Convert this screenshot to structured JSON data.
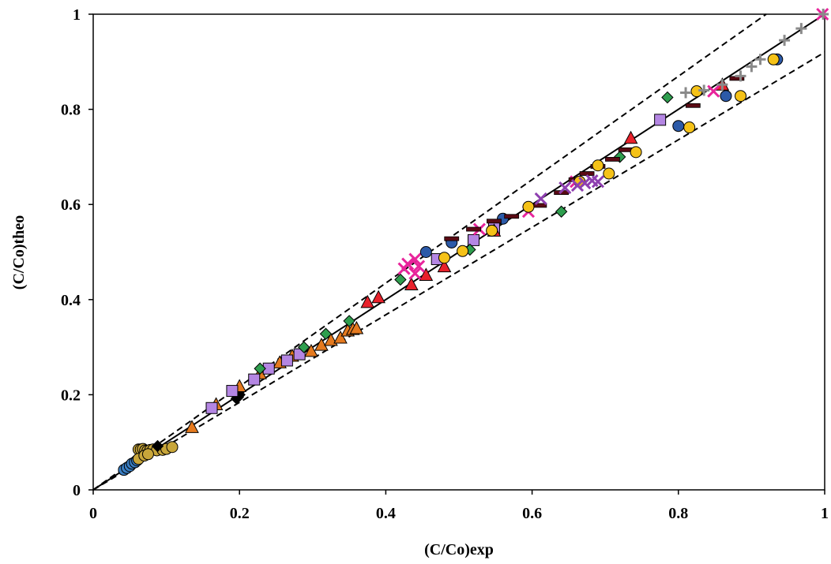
{
  "chart_data": {
    "type": "scatter",
    "title": "",
    "xlabel": "(C/Co)exp",
    "ylabel": "(C/Co)theo",
    "xlim": [
      0,
      1
    ],
    "ylim": [
      0,
      1
    ],
    "xticks": [
      "0",
      "0.2",
      "0.4",
      "0.6",
      "0.8",
      "1"
    ],
    "yticks": [
      "0",
      "0.2",
      "0.4",
      "0.6",
      "0.8",
      "1"
    ],
    "grid": false,
    "legend": "none",
    "reference_lines": [
      {
        "style": "solid",
        "points": [
          [
            0,
            0
          ],
          [
            1,
            1
          ]
        ]
      },
      {
        "style": "dashed",
        "points": [
          [
            0,
            0
          ],
          [
            0.92,
            1
          ]
        ]
      },
      {
        "style": "dashed",
        "points": [
          [
            0,
            0
          ],
          [
            1,
            0.92
          ]
        ]
      }
    ],
    "series": [
      {
        "marker": "circle",
        "color": "#3a7fc4",
        "points": [
          [
            0.042,
            0.042
          ],
          [
            0.046,
            0.046
          ],
          [
            0.05,
            0.05
          ],
          [
            0.053,
            0.055
          ],
          [
            0.057,
            0.058
          ],
          [
            0.06,
            0.062
          ]
        ]
      },
      {
        "marker": "circle",
        "color": "#c8a63a",
        "points": [
          [
            0.062,
            0.085
          ],
          [
            0.065,
            0.085
          ],
          [
            0.068,
            0.086
          ],
          [
            0.071,
            0.083
          ],
          [
            0.074,
            0.082
          ],
          [
            0.078,
            0.084
          ],
          [
            0.082,
            0.085
          ],
          [
            0.087,
            0.083
          ],
          [
            0.095,
            0.084
          ],
          [
            0.1,
            0.086
          ],
          [
            0.108,
            0.09
          ],
          [
            0.062,
            0.065
          ],
          [
            0.07,
            0.072
          ],
          [
            0.075,
            0.075
          ]
        ]
      },
      {
        "marker": "diamond",
        "color": "#000000",
        "points": [
          [
            0.088,
            0.092
          ],
          [
            0.196,
            0.192
          ],
          [
            0.198,
            0.195
          ],
          [
            0.2,
            0.2
          ]
        ]
      },
      {
        "marker": "triangle",
        "color": "#e57a1f",
        "points": [
          [
            0.135,
            0.132
          ],
          [
            0.168,
            0.18
          ],
          [
            0.2,
            0.218
          ],
          [
            0.228,
            0.245
          ],
          [
            0.255,
            0.268
          ],
          [
            0.272,
            0.282
          ],
          [
            0.298,
            0.292
          ],
          [
            0.312,
            0.305
          ],
          [
            0.325,
            0.315
          ],
          [
            0.338,
            0.32
          ],
          [
            0.348,
            0.335
          ],
          [
            0.355,
            0.338
          ],
          [
            0.36,
            0.34
          ]
        ]
      },
      {
        "marker": "square",
        "color": "#b486e3",
        "points": [
          [
            0.162,
            0.172
          ],
          [
            0.19,
            0.208
          ],
          [
            0.22,
            0.232
          ],
          [
            0.24,
            0.255
          ],
          [
            0.265,
            0.272
          ],
          [
            0.282,
            0.285
          ],
          [
            0.47,
            0.485
          ],
          [
            0.52,
            0.525
          ],
          [
            0.548,
            0.55
          ],
          [
            0.775,
            0.778
          ]
        ]
      },
      {
        "marker": "diamond",
        "color": "#2e9e4e",
        "points": [
          [
            0.228,
            0.255
          ],
          [
            0.288,
            0.3
          ],
          [
            0.318,
            0.328
          ],
          [
            0.35,
            0.355
          ],
          [
            0.42,
            0.442
          ],
          [
            0.515,
            0.505
          ],
          [
            0.64,
            0.585
          ],
          [
            0.72,
            0.7
          ],
          [
            0.785,
            0.825
          ]
        ]
      },
      {
        "marker": "triangle",
        "color": "#e8212b",
        "points": [
          [
            0.375,
            0.395
          ],
          [
            0.39,
            0.405
          ],
          [
            0.435,
            0.432
          ],
          [
            0.455,
            0.452
          ],
          [
            0.48,
            0.47
          ],
          [
            0.548,
            0.545
          ],
          [
            0.735,
            0.74
          ],
          [
            0.86,
            0.852
          ]
        ]
      },
      {
        "marker": "x",
        "color": "#e8249b",
        "points": [
          [
            0.425,
            0.465
          ],
          [
            0.43,
            0.475
          ],
          [
            0.44,
            0.485
          ],
          [
            0.445,
            0.47
          ],
          [
            0.44,
            0.455
          ],
          [
            0.528,
            0.548
          ],
          [
            0.595,
            0.585
          ],
          [
            0.66,
            0.648
          ],
          [
            0.848,
            0.838
          ],
          [
            0.997,
            1.0
          ]
        ]
      },
      {
        "marker": "circle",
        "color": "#2c5aa8",
        "points": [
          [
            0.455,
            0.5
          ],
          [
            0.49,
            0.52
          ],
          [
            0.56,
            0.57
          ],
          [
            0.8,
            0.765
          ],
          [
            0.865,
            0.828
          ],
          [
            0.935,
            0.905
          ]
        ]
      },
      {
        "marker": "dash",
        "color": "#5a0a14",
        "points": [
          [
            0.49,
            0.528
          ],
          [
            0.52,
            0.548
          ],
          [
            0.548,
            0.565
          ],
          [
            0.572,
            0.575
          ],
          [
            0.61,
            0.598
          ],
          [
            0.64,
            0.625
          ],
          [
            0.66,
            0.652
          ],
          [
            0.675,
            0.665
          ],
          [
            0.69,
            0.68
          ],
          [
            0.71,
            0.695
          ],
          [
            0.728,
            0.715
          ],
          [
            0.82,
            0.808
          ],
          [
            0.88,
            0.865
          ]
        ]
      },
      {
        "marker": "circle",
        "color": "#f5c218",
        "points": [
          [
            0.48,
            0.488
          ],
          [
            0.505,
            0.502
          ],
          [
            0.545,
            0.545
          ],
          [
            0.595,
            0.595
          ],
          [
            0.665,
            0.648
          ],
          [
            0.69,
            0.682
          ],
          [
            0.705,
            0.665
          ],
          [
            0.742,
            0.71
          ],
          [
            0.815,
            0.762
          ],
          [
            0.825,
            0.838
          ],
          [
            0.885,
            0.828
          ],
          [
            0.93,
            0.905
          ]
        ]
      },
      {
        "marker": "x",
        "color": "#8e3fb0",
        "points": [
          [
            0.612,
            0.612
          ],
          [
            0.645,
            0.635
          ],
          [
            0.662,
            0.64
          ],
          [
            0.672,
            0.645
          ],
          [
            0.682,
            0.65
          ],
          [
            0.69,
            0.648
          ]
        ]
      },
      {
        "marker": "plus",
        "color": "#8a8a8a",
        "points": [
          [
            0.81,
            0.835
          ],
          [
            0.835,
            0.84
          ],
          [
            0.86,
            0.852
          ],
          [
            0.885,
            0.87
          ],
          [
            0.9,
            0.89
          ],
          [
            0.912,
            0.905
          ],
          [
            0.945,
            0.945
          ],
          [
            0.968,
            0.97
          ],
          [
            0.998,
            1.0
          ]
        ]
      }
    ]
  }
}
